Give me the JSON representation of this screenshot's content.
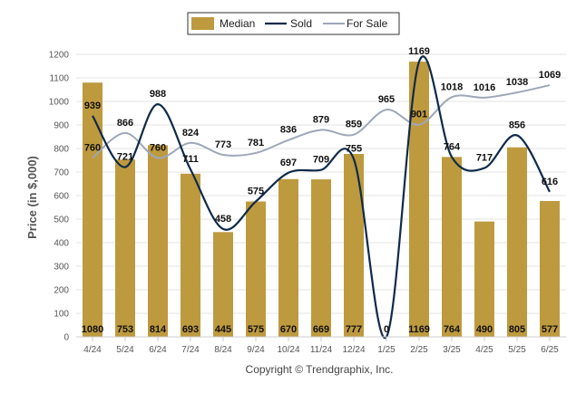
{
  "chart_data": {
    "type": "bar",
    "categories": [
      "4/24",
      "5/24",
      "6/24",
      "7/24",
      "8/24",
      "9/24",
      "10/24",
      "11/24",
      "12/24",
      "1/25",
      "2/25",
      "3/25",
      "4/25",
      "5/25",
      "6/25"
    ],
    "ylabel": "Price (in $,000)",
    "ylim": [
      0,
      1200
    ],
    "yticks": [
      0,
      100,
      200,
      300,
      400,
      500,
      600,
      700,
      800,
      900,
      1000,
      1100,
      1200
    ],
    "grid": true,
    "legend_position": "top-center",
    "series": [
      {
        "name": "Median",
        "kind": "bar",
        "color": "#BE9A3F",
        "values": [
          1080,
          753,
          814,
          693,
          445,
          575,
          670,
          669,
          777,
          0,
          1169,
          764,
          490,
          805,
          577
        ]
      },
      {
        "name": "Sold",
        "kind": "line",
        "color": "#0F2A4A",
        "values": [
          939,
          721,
          988,
          711,
          458,
          575,
          697,
          709,
          755,
          0,
          1169,
          764,
          717,
          856,
          616
        ]
      },
      {
        "name": "For Sale",
        "kind": "line",
        "color": "#9EA7B8",
        "values": [
          760,
          866,
          760,
          824,
          773,
          781,
          836,
          879,
          859,
          965,
          901,
          1018,
          1016,
          1038,
          1069
        ]
      }
    ],
    "footer": "Copyright © Trendgraphix, Inc."
  }
}
